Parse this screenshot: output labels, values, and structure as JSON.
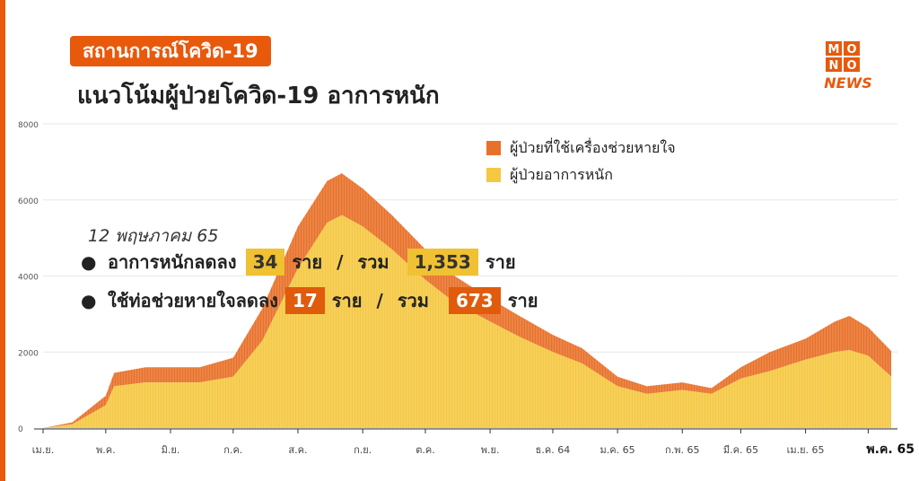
{
  "tag": {
    "text": "สถานการณ์โควิด-19",
    "color": "#e8590c"
  },
  "title": "แนวโน้มผู้ป่วยโควิด-19 อาการหนัก",
  "logo": {
    "line1": "MO",
    "line2": "NO",
    "word": "NEWS",
    "colors": {
      "box": "#e8590c",
      "news": "#e8590c"
    }
  },
  "colors": {
    "severe": "#f5c842",
    "ventilator": "#e8712a",
    "accent": "#e8590c"
  },
  "legend": {
    "ventilator": "ผู้ป่วยที่ใช้เครื่องช่วยหายใจ",
    "severe": "ผู้ป่วยอาการหนัก"
  },
  "annotation": {
    "date": "12 พฤษภาคม 65",
    "bullet": "●",
    "severe_text": "อาการหนักลดลง",
    "severe_decrease": "34",
    "severe_total": "1,353",
    "vent_text": "ใช้ท่อช่วยหายใจลดลง",
    "vent_decrease": "17",
    "vent_total": "673",
    "unit": "ราย",
    "separator": "/",
    "total_word": "รวม"
  },
  "chart_data": {
    "type": "area",
    "stacked": true,
    "ylim": [
      0,
      8000
    ],
    "yticks": [
      0,
      2000,
      4000,
      6000,
      8000
    ],
    "xticks": [
      "เม.ย.",
      "พ.ค.",
      "มิ.ย.",
      "ก.ค.",
      "ส.ค.",
      "ก.ย.",
      "ต.ค.",
      "พ.ย.",
      "ธ.ค. 64",
      "ม.ค. 65",
      "ก.พ. 65",
      "มี.ค. 65",
      "เม.ย. 65",
      "พ.ค. 65"
    ],
    "x": [
      "2021-04-01",
      "2021-04-15",
      "2021-05-01",
      "2021-05-05",
      "2021-05-20",
      "2021-06-01",
      "2021-06-15",
      "2021-07-01",
      "2021-07-15",
      "2021-08-01",
      "2021-08-15",
      "2021-08-22",
      "2021-09-01",
      "2021-09-15",
      "2021-10-01",
      "2021-10-15",
      "2021-11-01",
      "2021-11-15",
      "2021-12-01",
      "2021-12-15",
      "2022-01-01",
      "2022-01-15",
      "2022-02-01",
      "2022-02-15",
      "2022-03-01",
      "2022-03-15",
      "2022-04-01",
      "2022-04-15",
      "2022-04-22",
      "2022-05-01",
      "2022-05-12"
    ],
    "series": [
      {
        "name": "ผู้ป่วยอาการหนัก",
        "values": [
          0,
          100,
          600,
          1100,
          1200,
          1200,
          1200,
          1350,
          2300,
          4200,
          5400,
          5600,
          5300,
          4700,
          3900,
          3300,
          2800,
          2400,
          2000,
          1700,
          1100,
          900,
          1000,
          900,
          1300,
          1500,
          1800,
          2000,
          2050,
          1900,
          1353
        ]
      },
      {
        "name": "ผู้ป่วยที่ใช้เครื่องช่วยหายใจ",
        "values": [
          0,
          50,
          250,
          350,
          400,
          400,
          400,
          500,
          850,
          1100,
          1100,
          1100,
          1000,
          900,
          800,
          700,
          600,
          550,
          450,
          400,
          250,
          200,
          200,
          150,
          300,
          500,
          550,
          800,
          900,
          750,
          673
        ]
      }
    ]
  }
}
